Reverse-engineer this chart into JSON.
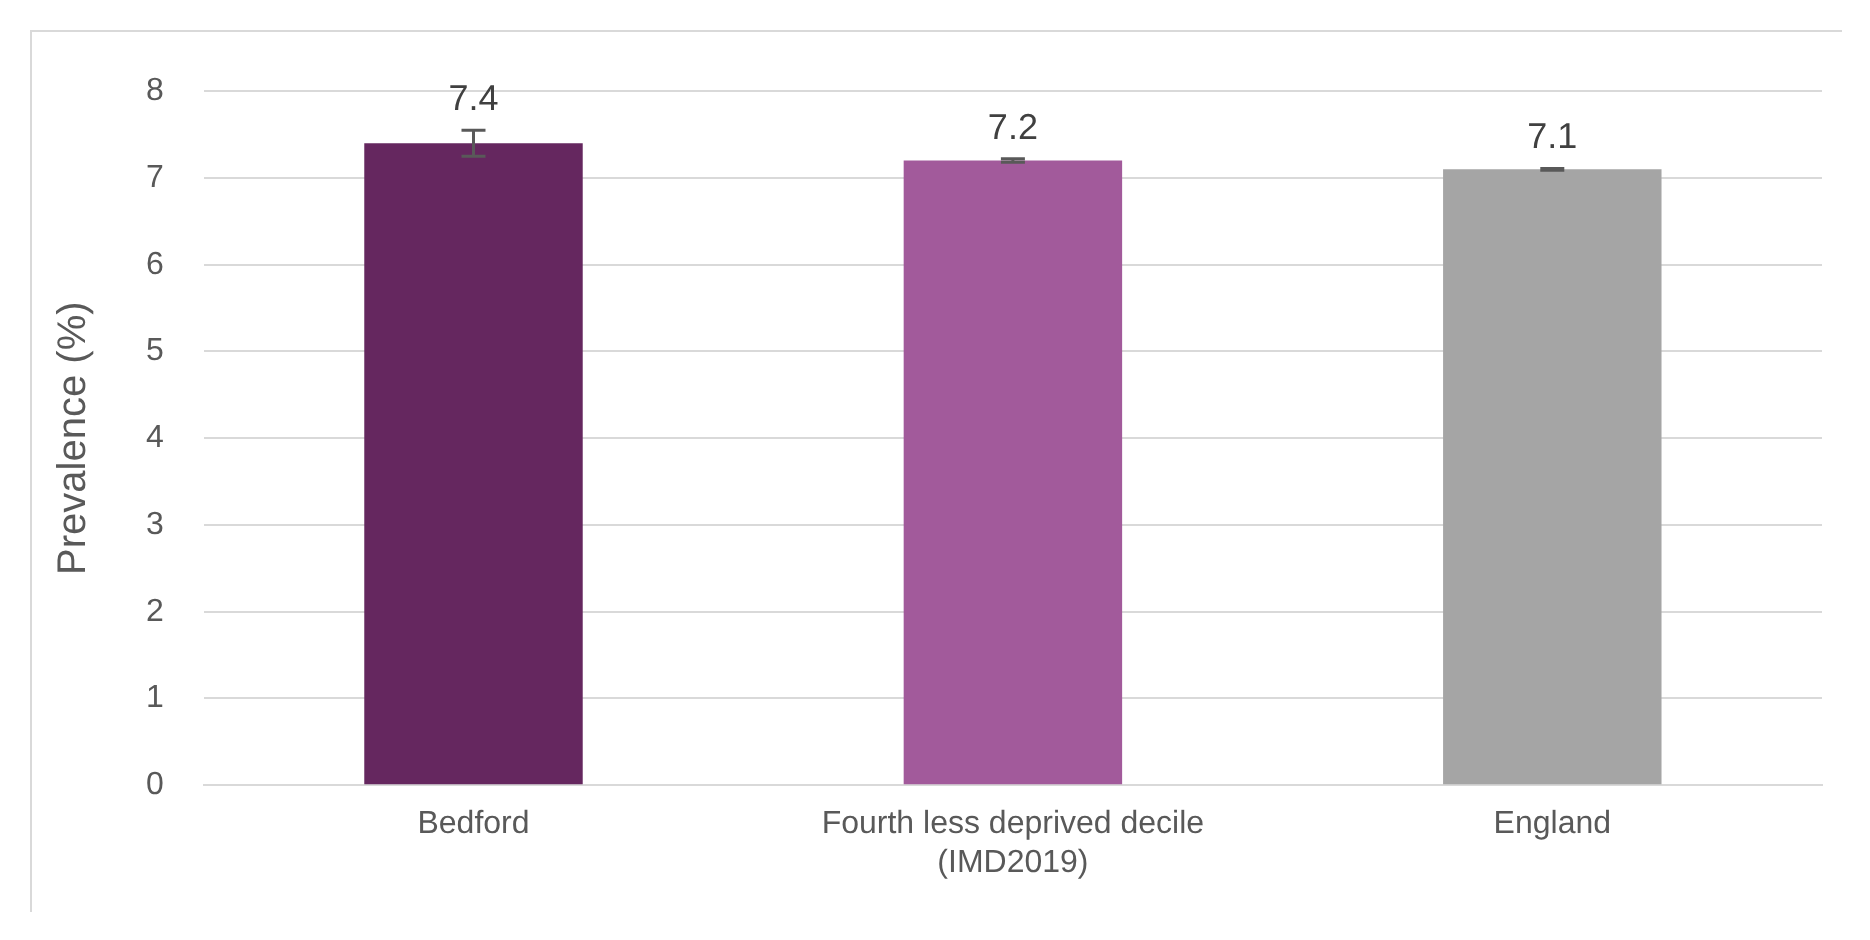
{
  "chart_data": {
    "type": "bar",
    "ylabel": "Prevalence (%)",
    "categories": [
      "Bedford",
      "Fourth less deprived decile (IMD2019)",
      "England"
    ],
    "values": [
      7.4,
      7.2,
      7.1
    ],
    "colors": [
      "#65275f",
      "#a25a9b",
      "#a5a5a5"
    ],
    "errors": [
      0.15,
      0.02,
      0.01
    ],
    "ylim": [
      0,
      8
    ],
    "yticks": [
      0,
      1,
      2,
      3,
      4,
      5,
      6,
      7,
      8
    ],
    "grid": "y",
    "data_labels": true
  }
}
